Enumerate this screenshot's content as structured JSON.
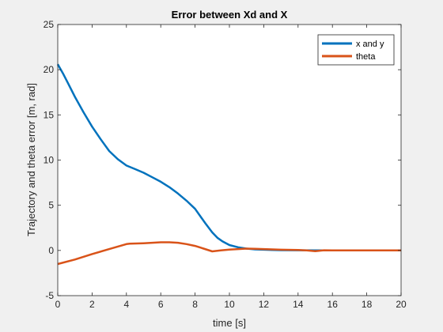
{
  "chart_data": {
    "type": "line",
    "title": "Error between Xd and X",
    "xlabel": "time [s]",
    "ylabel": "Trajectory and theta error [m, rad]",
    "xlim": [
      0,
      20
    ],
    "ylim": [
      -5,
      25
    ],
    "xticks": [
      0,
      2,
      4,
      6,
      8,
      10,
      12,
      14,
      16,
      18,
      20
    ],
    "yticks": [
      -5,
      0,
      5,
      10,
      15,
      20,
      25
    ],
    "grid": false,
    "legend_position": "top-right",
    "series": [
      {
        "name": "x and y",
        "color": "#0072BD",
        "x": [
          0,
          0.3,
          0.6,
          1,
          1.5,
          2,
          2.5,
          3,
          3.5,
          4,
          4.5,
          5,
          5.5,
          6,
          6.5,
          7,
          7.5,
          8,
          8.3,
          8.6,
          9,
          9.3,
          9.6,
          10,
          10.5,
          11,
          11.5,
          12,
          12.5,
          13,
          14,
          15,
          16,
          17,
          18,
          19,
          20
        ],
        "y": [
          20.6,
          19.6,
          18.5,
          17.0,
          15.3,
          13.7,
          12.3,
          11.0,
          10.1,
          9.4,
          9.0,
          8.6,
          8.1,
          7.6,
          7.0,
          6.3,
          5.5,
          4.6,
          3.8,
          3.0,
          2.0,
          1.4,
          1.0,
          0.6,
          0.35,
          0.2,
          0.12,
          0.08,
          0.05,
          0.03,
          0.02,
          0.01,
          0.0,
          0.0,
          0.0,
          0.0,
          0.0
        ]
      },
      {
        "name": "theta",
        "color": "#D95319",
        "x": [
          0,
          1,
          2,
          3,
          4,
          4.2,
          5,
          5.5,
          6,
          6.5,
          7,
          7.5,
          8,
          8.5,
          9,
          9.5,
          10,
          10.5,
          11,
          11.5,
          12,
          12.5,
          13,
          14,
          14.5,
          15,
          15.5,
          16,
          17,
          18,
          19,
          20
        ],
        "y": [
          -1.5,
          -1.0,
          -0.4,
          0.15,
          0.7,
          0.75,
          0.8,
          0.85,
          0.9,
          0.9,
          0.85,
          0.7,
          0.5,
          0.2,
          -0.1,
          0.0,
          0.1,
          0.15,
          0.2,
          0.18,
          0.15,
          0.12,
          0.08,
          0.05,
          0.0,
          -0.08,
          0.02,
          0.0,
          0.0,
          0.0,
          0.0,
          0.0
        ]
      }
    ]
  }
}
